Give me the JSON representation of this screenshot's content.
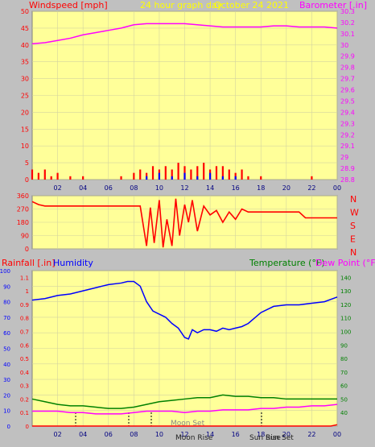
{
  "header": {
    "windspeed_label": "Windspeed [mph]",
    "graph_title": "24 hour graph day",
    "graph_date": "October 24 2021",
    "barometer_label": "Barometer [.in]"
  },
  "lower_header": {
    "rainfall_label": "Rainfall [.in]",
    "humidity_label": "Humidity",
    "temperature_label": "Temperature (°F)",
    "dewpoint_label": "Dew Point (°F)"
  },
  "direction_labels": [
    "N",
    "W",
    "S",
    "E",
    "N"
  ],
  "moon_set_label": "Moon Set",
  "moon_rise_label": "Moon Rise",
  "sun_rise_label": "Sun Rise",
  "sun_set_label": "Sun Set",
  "colors": {
    "plot_bg": "#ffff99",
    "frame": "#808080",
    "grid": "#d4d4a0",
    "wind": "#ff0000",
    "gust": "#0000ff",
    "barometer": "#ff00ff",
    "direction": "#ff0000",
    "humidity": "#0000ff",
    "temperature": "#008000",
    "dewpoint": "#ff00ff",
    "rain": "#ff0000",
    "title": "#ffff00"
  },
  "chart_data": [
    {
      "type": "line",
      "title": "24 hour graph day  October 24 2021",
      "x_ticks": [
        "02",
        "04",
        "06",
        "08",
        "10",
        "12",
        "14",
        "16",
        "18",
        "20",
        "22",
        "00"
      ],
      "xlim": [
        0,
        24
      ],
      "y_left": {
        "label": "Windspeed [mph]",
        "ylim": [
          0,
          50
        ],
        "ticks": [
          0,
          5,
          10,
          15,
          20,
          25,
          30,
          35,
          40,
          45,
          50
        ]
      },
      "y_right": {
        "label": "Barometer [.in]",
        "ylim": [
          28.8,
          30.3
        ],
        "ticks": [
          "28.8",
          "28.9",
          "29",
          "29.1",
          "29.2",
          "29.3",
          "29.4",
          "29.5",
          "29.6",
          "29.7",
          "29.8",
          "29.9",
          "30",
          "30.1",
          "30.2",
          "30.3"
        ]
      },
      "series": [
        {
          "name": "Barometer [.in]",
          "axis": "right",
          "x": [
            0,
            1,
            2,
            3,
            4,
            5,
            6,
            7,
            8,
            9,
            10,
            11,
            12,
            13,
            14,
            15,
            16,
            17,
            18,
            19,
            20,
            21,
            22,
            23,
            24
          ],
          "y": [
            30.01,
            30.02,
            30.04,
            30.06,
            30.09,
            30.11,
            30.13,
            30.15,
            30.18,
            30.19,
            30.19,
            30.19,
            30.19,
            30.18,
            30.17,
            30.16,
            30.16,
            30.16,
            30.16,
            30.17,
            30.17,
            30.16,
            30.16,
            30.16,
            30.15
          ]
        },
        {
          "name": "Windspeed [mph]",
          "axis": "left",
          "x": [
            0,
            0.5,
            1,
            1.5,
            2,
            2.5,
            3,
            4,
            5,
            6,
            7,
            8,
            8.5,
            9,
            9.5,
            10,
            10.5,
            11,
            11.5,
            12,
            12.5,
            13,
            13.5,
            14,
            14.5,
            15,
            15.5,
            16,
            16.5,
            17,
            18,
            19,
            20,
            21,
            22,
            23,
            24
          ],
          "y": [
            3,
            2,
            3,
            1,
            2,
            0,
            1,
            1,
            0,
            0,
            1,
            2,
            3,
            2,
            4,
            3,
            4,
            3,
            5,
            4,
            3,
            4,
            5,
            3,
            4,
            4,
            3,
            2,
            3,
            1,
            1,
            0,
            0,
            0,
            1,
            0,
            0
          ]
        },
        {
          "name": "Gust",
          "axis": "left",
          "x": [
            8,
            9,
            10,
            11,
            12,
            13,
            14,
            15,
            16,
            17
          ],
          "y": [
            0,
            1,
            2,
            1,
            2,
            1,
            2,
            1,
            1,
            0
          ]
        }
      ]
    },
    {
      "type": "scatter",
      "title": "",
      "xlim": [
        0,
        24
      ],
      "y_left": {
        "label": "",
        "ylim": [
          0,
          360
        ],
        "ticks": [
          0,
          90,
          180,
          270,
          360
        ]
      },
      "right_labels": [
        "N",
        "W",
        "S",
        "E",
        "N"
      ],
      "series": [
        {
          "name": "Wind direction",
          "x": [
            0,
            0.5,
            1,
            2,
            3,
            4,
            5,
            6,
            7,
            8,
            8.5,
            9,
            9.3,
            9.6,
            10,
            10.3,
            10.6,
            11,
            11.3,
            11.6,
            12,
            12.3,
            12.6,
            13,
            13.5,
            14,
            14.5,
            15,
            15.5,
            16,
            16.5,
            17,
            18,
            19,
            20,
            21,
            21.5,
            22,
            23,
            24
          ],
          "y": [
            320,
            300,
            290,
            290,
            290,
            290,
            290,
            290,
            290,
            290,
            290,
            20,
            280,
            40,
            330,
            10,
            200,
            20,
            340,
            90,
            300,
            180,
            330,
            120,
            290,
            230,
            260,
            180,
            250,
            200,
            270,
            250,
            250,
            250,
            250,
            250,
            210,
            210,
            210,
            210
          ]
        }
      ]
    },
    {
      "type": "line",
      "title": "",
      "x_ticks": [
        "02",
        "04",
        "06",
        "08",
        "10",
        "12",
        "14",
        "16",
        "18",
        "20",
        "22",
        "00"
      ],
      "xlim": [
        0,
        24
      ],
      "y_left_outer": {
        "label": "Humidity",
        "ylim": [
          0,
          100
        ],
        "ticks": [
          0,
          10,
          20,
          30,
          40,
          50,
          60,
          70,
          80,
          90,
          100
        ]
      },
      "y_left_inner": {
        "label": "Rainfall [.in]",
        "ylim": [
          0,
          1.15
        ],
        "ticks": [
          "0",
          "0.1",
          "0.2",
          "0.3",
          "0.4",
          "0.5",
          "0.6",
          "0.7",
          "0.8",
          "0.9",
          "1",
          "1.1"
        ]
      },
      "y_right": {
        "label": "Temperature (°F)",
        "ylim": [
          30,
          145
        ],
        "ticks": [
          40,
          50,
          60,
          70,
          80,
          90,
          100,
          110,
          120,
          130,
          140
        ]
      },
      "series": [
        {
          "name": "Humidity",
          "axis": "left_outer",
          "x": [
            0,
            1,
            2,
            3,
            4,
            5,
            6,
            7,
            7.5,
            8,
            8.5,
            9,
            9.5,
            10,
            10.5,
            11,
            11.5,
            12,
            12.3,
            12.6,
            13,
            13.5,
            14,
            14.5,
            15,
            15.5,
            16,
            16.5,
            17,
            18,
            19,
            20,
            21,
            22,
            23,
            24
          ],
          "y": [
            81,
            82,
            84,
            85,
            87,
            89,
            91,
            92,
            93,
            93,
            90,
            80,
            74,
            72,
            70,
            66,
            63,
            57,
            56,
            62,
            60,
            62,
            62,
            61,
            63,
            62,
            63,
            64,
            66,
            73,
            77,
            78,
            78,
            79,
            80,
            83
          ]
        },
        {
          "name": "Temperature (°F)",
          "axis": "right",
          "x": [
            0,
            1,
            2,
            3,
            4,
            5,
            6,
            7,
            8,
            9,
            10,
            11,
            12,
            13,
            14,
            15,
            16,
            17,
            18,
            19,
            20,
            21,
            22,
            23,
            24
          ],
          "y": [
            50,
            48,
            46,
            45,
            45,
            44,
            43,
            43,
            44,
            46,
            48,
            49,
            50,
            51,
            51,
            53,
            52,
            52,
            51,
            51,
            50,
            50,
            50,
            50,
            50
          ]
        },
        {
          "name": "Dew Point (°F)",
          "axis": "right",
          "x": [
            0,
            1,
            2,
            3,
            4,
            5,
            6,
            7,
            8,
            9,
            10,
            11,
            12,
            13,
            14,
            15,
            16,
            17,
            18,
            19,
            20,
            21,
            22,
            23,
            24
          ],
          "y": [
            41,
            41,
            41,
            40,
            40,
            39,
            39,
            39,
            40,
            41,
            41,
            41,
            40,
            41,
            41,
            42,
            42,
            42,
            43,
            43,
            44,
            44,
            45,
            45,
            46
          ]
        },
        {
          "name": "Rainfall [.in]",
          "axis": "left_inner",
          "x": [
            0,
            23.5,
            24
          ],
          "y": [
            0,
            0,
            0.01
          ]
        }
      ]
    }
  ]
}
